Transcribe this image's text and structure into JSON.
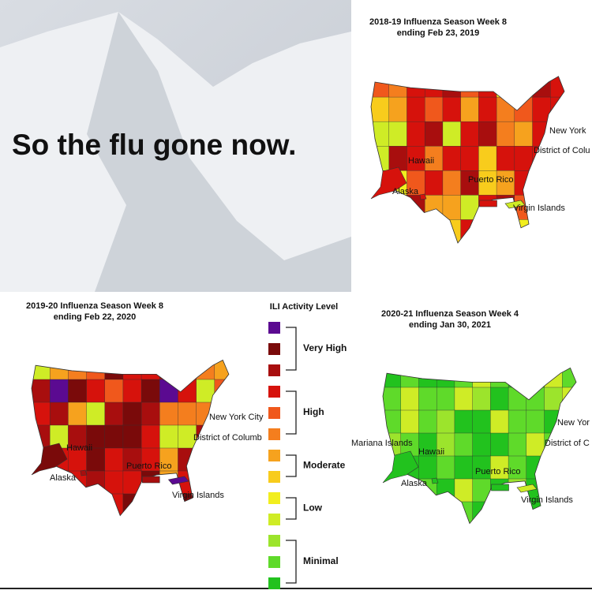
{
  "caption": "So the flu gone now.",
  "maps": [
    {
      "title": [
        "2018-19 Influenza Season Week 8",
        "ending Feb 23, 2019"
      ],
      "labels": [
        "New York",
        "District of Colu",
        "Hawaii",
        "Puerto Rico",
        "Alaska",
        "Virgin Islands"
      ]
    },
    {
      "title": [
        "2019-20 Influenza Season Week 8",
        "ending Feb 22, 2020"
      ],
      "labels": [
        "New York City",
        "District of Columb",
        "Hawaii",
        "Puerto Rico",
        "Alaska",
        "Virgin Islands"
      ]
    },
    {
      "title": [
        "2020-21 Influenza Season Week 4",
        "ending Jan 30, 2021"
      ],
      "labels": [
        "New Yor",
        "District of C",
        "Mariana Islands",
        "Hawaii",
        "Puerto Rico",
        "Alaska",
        "Virgin Islands"
      ]
    }
  ],
  "legend": {
    "title": "ILI Activity Level",
    "swatches": [
      "#5b0a91",
      "#7a0a0a",
      "#a80e0e",
      "#d6120c",
      "#f0581c",
      "#f47e1e",
      "#f6a21e",
      "#f8cc1c",
      "#f2ee1e",
      "#cfec26",
      "#9ce42c",
      "#5fda2a",
      "#22c21e"
    ],
    "levels": [
      "Very High",
      "High",
      "Moderate",
      "Low",
      "Minimal"
    ]
  }
}
